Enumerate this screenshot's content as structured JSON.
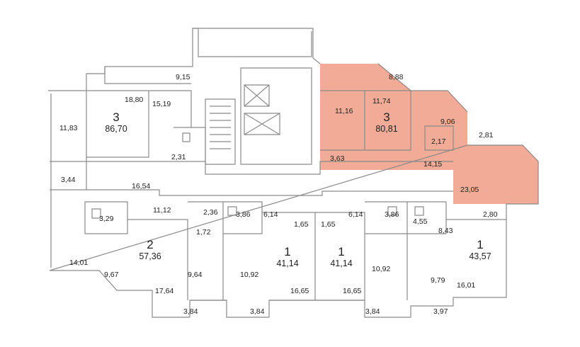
{
  "highlight_color": "#f2ab96",
  "apartments": [
    {
      "rooms": "3",
      "area": "86,70",
      "highlighted": false
    },
    {
      "rooms": "3",
      "area": "80,81",
      "highlighted": true
    },
    {
      "rooms": "2",
      "area": "57,36",
      "highlighted": false
    },
    {
      "rooms": "1",
      "area": "41,14",
      "highlighted": false
    },
    {
      "rooms": "1",
      "area": "41,14",
      "highlighted": false
    },
    {
      "rooms": "1",
      "area": "43,57",
      "highlighted": false
    }
  ],
  "room_areas": [
    "11,83",
    "18,80",
    "15,19",
    "9,15",
    "2,31",
    "3,44",
    "16,54",
    "8,88",
    "11,16",
    "11,74",
    "9,06",
    "2,81",
    "2,17",
    "3,63",
    "14,15",
    "23,05",
    "3,29",
    "11,12",
    "2,36",
    "3,86",
    "6,14",
    "1,72",
    "1,65",
    "1,65",
    "6,14",
    "3,86",
    "4,55",
    "2,80",
    "8,43",
    "14,01",
    "9,67",
    "17,64",
    "9,64",
    "10,92",
    "16,65",
    "16,65",
    "10,92",
    "9,79",
    "16,01",
    "3,84",
    "3,84",
    "3,84",
    "3,97"
  ]
}
